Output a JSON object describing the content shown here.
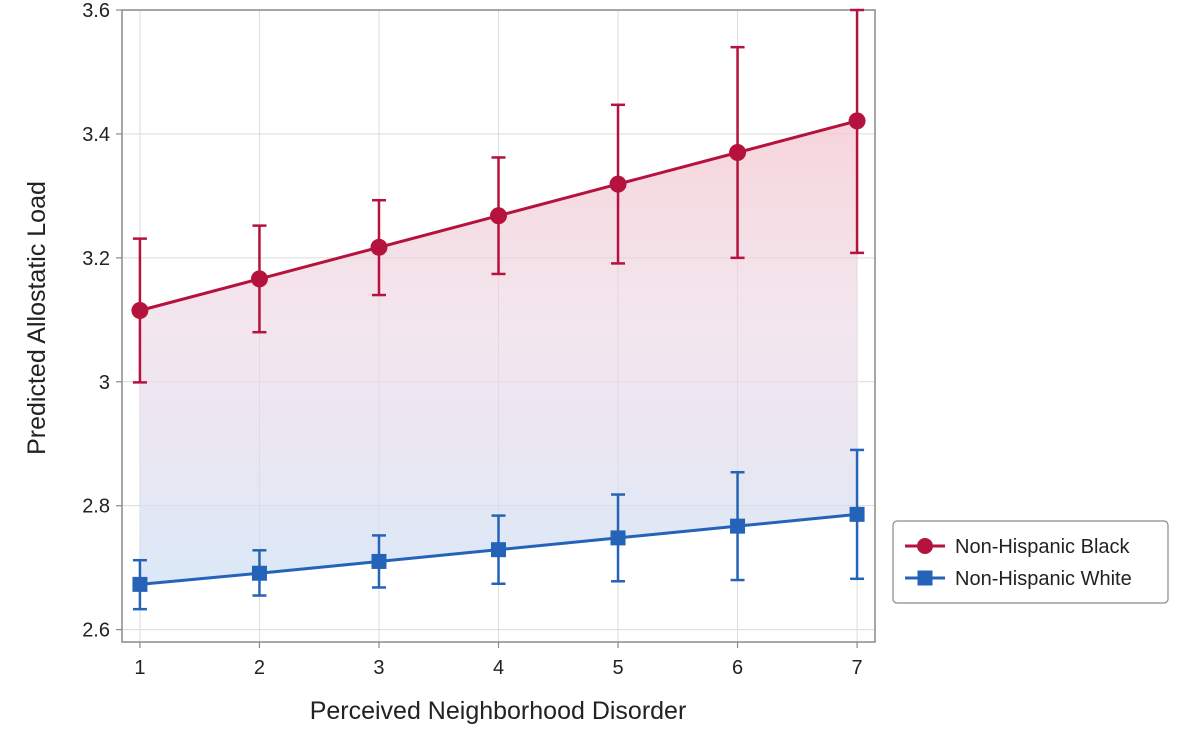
{
  "chart_data": {
    "type": "line",
    "xlabel": "Perceived Neighborhood Disorder",
    "ylabel": "Predicted Allostatic Load",
    "x": [
      1,
      2,
      3,
      4,
      5,
      6,
      7
    ],
    "x_tick_labels": [
      "1",
      "2",
      "3",
      "4",
      "5",
      "6",
      "7"
    ],
    "y_ticks": [
      2.6,
      2.8,
      3.0,
      3.2,
      3.4,
      3.6
    ],
    "y_tick_labels": [
      "2.6",
      "2.8",
      "3",
      "3.2",
      "3.4",
      "3.6"
    ],
    "xlim": [
      0.85,
      7.15
    ],
    "ylim": [
      2.58,
      3.6
    ],
    "grid": true,
    "legend_position": "right",
    "shaded_band_between_series": true,
    "series": [
      {
        "name": "Non-Hispanic Black",
        "marker": "circle",
        "color": "#B5123E",
        "values": [
          3.115,
          3.166,
          3.217,
          3.268,
          3.319,
          3.37,
          3.421
        ],
        "ci_lower": [
          2.999,
          3.08,
          3.14,
          3.174,
          3.191,
          3.2,
          3.208
        ],
        "ci_upper": [
          3.231,
          3.252,
          3.293,
          3.362,
          3.447,
          3.54,
          3.6
        ]
      },
      {
        "name": "Non-Hispanic White",
        "marker": "square",
        "color": "#2563B8",
        "values": [
          2.673,
          2.691,
          2.71,
          2.729,
          2.748,
          2.767,
          2.786
        ],
        "ci_lower": [
          2.633,
          2.655,
          2.668,
          2.674,
          2.678,
          2.68,
          2.682
        ],
        "ci_upper": [
          2.712,
          2.728,
          2.752,
          2.784,
          2.818,
          2.854,
          2.89
        ]
      }
    ]
  }
}
